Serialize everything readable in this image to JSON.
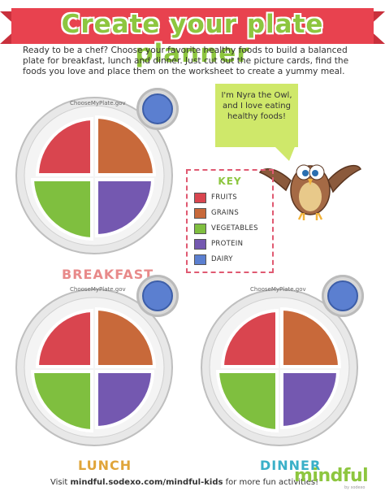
{
  "header": {
    "title": "Create your plate planner",
    "intro": "Ready to be a chef? Choose your favorite healthy foods to build a balanced plate for breakfast, lunch and dinner. Just cut out the picture cards, find the foods you love and place them on the worksheet to create a yummy meal."
  },
  "plates": [
    {
      "label": "ChooseMyPlate.gov",
      "meal": "BREAKFAST"
    },
    {
      "label": "ChooseMyPlate.gov",
      "meal": "LUNCH"
    },
    {
      "label": "ChooseMyPlate.gov",
      "meal": "DINNER"
    }
  ],
  "mascot": {
    "speech": "I'm Nyra the Owl, and I love eating healthy foods!"
  },
  "key": {
    "title": "KEY",
    "items": [
      {
        "label": "FRUITS",
        "color": "#d9454f"
      },
      {
        "label": "GRAINS",
        "color": "#c8693a"
      },
      {
        "label": "VEGETABLES",
        "color": "#7fbf3f"
      },
      {
        "label": "PROTEIN",
        "color": "#7458b0"
      },
      {
        "label": "DAIRY",
        "color": "#5b7fd0"
      }
    ]
  },
  "footer": {
    "prefix": "Visit ",
    "link": "mindful.sodexo.com/mindful-kids",
    "suffix": " for more fun activities!",
    "brand": "mindful",
    "brand_sub": "by sodexo"
  },
  "colors": {
    "banner_red": "#e8424f",
    "title_green": "#8dc63f",
    "breakfast": "#e88a8a",
    "lunch": "#e0a53a",
    "dinner": "#3ab0c8"
  }
}
